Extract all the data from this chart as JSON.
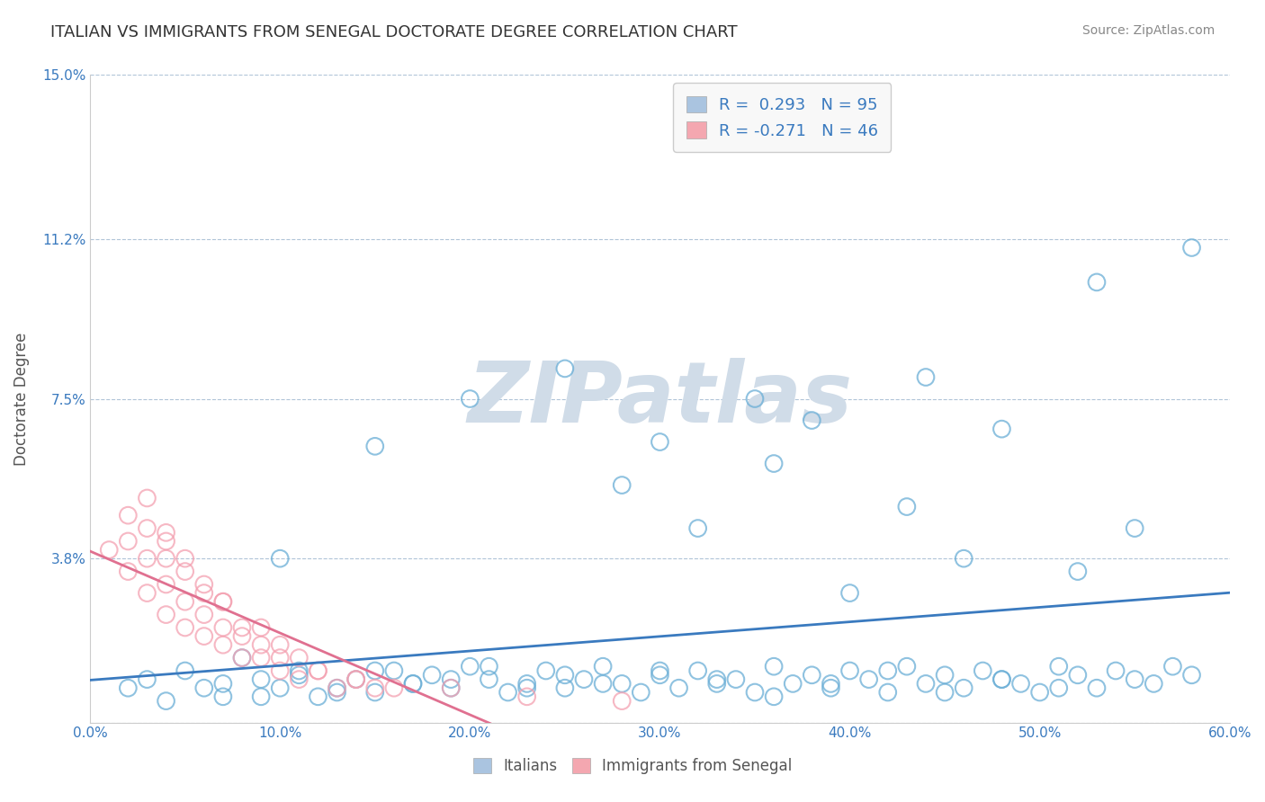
{
  "title": "ITALIAN VS IMMIGRANTS FROM SENEGAL DOCTORATE DEGREE CORRELATION CHART",
  "source_text": "Source: ZipAtlas.com",
  "ylabel": "Doctorate Degree",
  "xlim": [
    0.0,
    0.6
  ],
  "ylim": [
    0.0,
    0.15
  ],
  "xticks": [
    0.0,
    0.1,
    0.2,
    0.3,
    0.4,
    0.5,
    0.6
  ],
  "xtick_labels": [
    "0.0%",
    "10.0%",
    "20.0%",
    "30.0%",
    "40.0%",
    "50.0%",
    "60.0%"
  ],
  "yticks": [
    0.0,
    0.038,
    0.075,
    0.112,
    0.15
  ],
  "ytick_labels": [
    "",
    "3.8%",
    "7.5%",
    "11.2%",
    "15.0%"
  ],
  "legend_label_1": "R =  0.293   N = 95",
  "legend_label_2": "R = -0.271   N = 46",
  "legend_color_1": "#aac4e0",
  "legend_color_2": "#f4a7b0",
  "watermark": "ZIPatlas",
  "watermark_color": "#d0dce8",
  "blue_scatter_color": "#6aaed6",
  "pink_scatter_color": "#f4a0b0",
  "blue_line_color": "#3a7abf",
  "pink_line_color": "#e07090",
  "background_color": "#ffffff",
  "title_color": "#333333",
  "title_fontsize": 13,
  "axis_label_color": "#555555",
  "tick_color": "#3a7abf",
  "grid_color": "#b0c4d8",
  "bottom_legend_1": "Italians",
  "bottom_legend_2": "Immigrants from Senegal",
  "blue_points_x": [
    0.02,
    0.03,
    0.04,
    0.05,
    0.06,
    0.07,
    0.08,
    0.09,
    0.1,
    0.11,
    0.12,
    0.13,
    0.14,
    0.15,
    0.16,
    0.17,
    0.18,
    0.19,
    0.2,
    0.21,
    0.22,
    0.23,
    0.24,
    0.25,
    0.26,
    0.27,
    0.28,
    0.29,
    0.3,
    0.31,
    0.32,
    0.33,
    0.34,
    0.35,
    0.36,
    0.37,
    0.38,
    0.39,
    0.4,
    0.41,
    0.42,
    0.43,
    0.44,
    0.45,
    0.46,
    0.47,
    0.48,
    0.49,
    0.5,
    0.51,
    0.52,
    0.53,
    0.54,
    0.55,
    0.56,
    0.57,
    0.58,
    0.07,
    0.09,
    0.11,
    0.13,
    0.15,
    0.17,
    0.19,
    0.21,
    0.23,
    0.25,
    0.27,
    0.3,
    0.33,
    0.36,
    0.39,
    0.42,
    0.45,
    0.48,
    0.51,
    0.1,
    0.15,
    0.2,
    0.25,
    0.3,
    0.35,
    0.4,
    0.46,
    0.52,
    0.55,
    0.53,
    0.58,
    0.48,
    0.44,
    0.38,
    0.43,
    0.36,
    0.28,
    0.32
  ],
  "blue_points_y": [
    0.008,
    0.01,
    0.005,
    0.012,
    0.008,
    0.006,
    0.015,
    0.01,
    0.008,
    0.012,
    0.006,
    0.008,
    0.01,
    0.007,
    0.012,
    0.009,
    0.011,
    0.008,
    0.013,
    0.01,
    0.007,
    0.009,
    0.012,
    0.008,
    0.01,
    0.013,
    0.009,
    0.007,
    0.011,
    0.008,
    0.012,
    0.009,
    0.01,
    0.007,
    0.013,
    0.009,
    0.011,
    0.008,
    0.012,
    0.01,
    0.007,
    0.013,
    0.009,
    0.011,
    0.008,
    0.012,
    0.01,
    0.009,
    0.007,
    0.013,
    0.011,
    0.008,
    0.012,
    0.01,
    0.009,
    0.013,
    0.011,
    0.009,
    0.006,
    0.011,
    0.007,
    0.012,
    0.009,
    0.01,
    0.013,
    0.008,
    0.011,
    0.009,
    0.012,
    0.01,
    0.006,
    0.009,
    0.012,
    0.007,
    0.01,
    0.008,
    0.038,
    0.064,
    0.075,
    0.082,
    0.065,
    0.075,
    0.03,
    0.038,
    0.035,
    0.045,
    0.102,
    0.11,
    0.068,
    0.08,
    0.07,
    0.05,
    0.06,
    0.055,
    0.045
  ],
  "pink_points_x": [
    0.01,
    0.02,
    0.02,
    0.03,
    0.03,
    0.03,
    0.04,
    0.04,
    0.04,
    0.04,
    0.05,
    0.05,
    0.05,
    0.06,
    0.06,
    0.06,
    0.07,
    0.07,
    0.07,
    0.08,
    0.08,
    0.09,
    0.09,
    0.1,
    0.1,
    0.11,
    0.11,
    0.12,
    0.13,
    0.14,
    0.15,
    0.02,
    0.03,
    0.04,
    0.05,
    0.06,
    0.07,
    0.08,
    0.09,
    0.1,
    0.12,
    0.14,
    0.16,
    0.19,
    0.23,
    0.28
  ],
  "pink_points_y": [
    0.04,
    0.035,
    0.042,
    0.03,
    0.038,
    0.045,
    0.025,
    0.032,
    0.038,
    0.042,
    0.022,
    0.028,
    0.035,
    0.02,
    0.025,
    0.03,
    0.018,
    0.022,
    0.028,
    0.015,
    0.02,
    0.015,
    0.022,
    0.012,
    0.018,
    0.01,
    0.015,
    0.012,
    0.008,
    0.01,
    0.008,
    0.048,
    0.052,
    0.044,
    0.038,
    0.032,
    0.028,
    0.022,
    0.018,
    0.015,
    0.012,
    0.01,
    0.008,
    0.008,
    0.006,
    0.005
  ],
  "pink_line_xlim": [
    0.0,
    0.3
  ]
}
